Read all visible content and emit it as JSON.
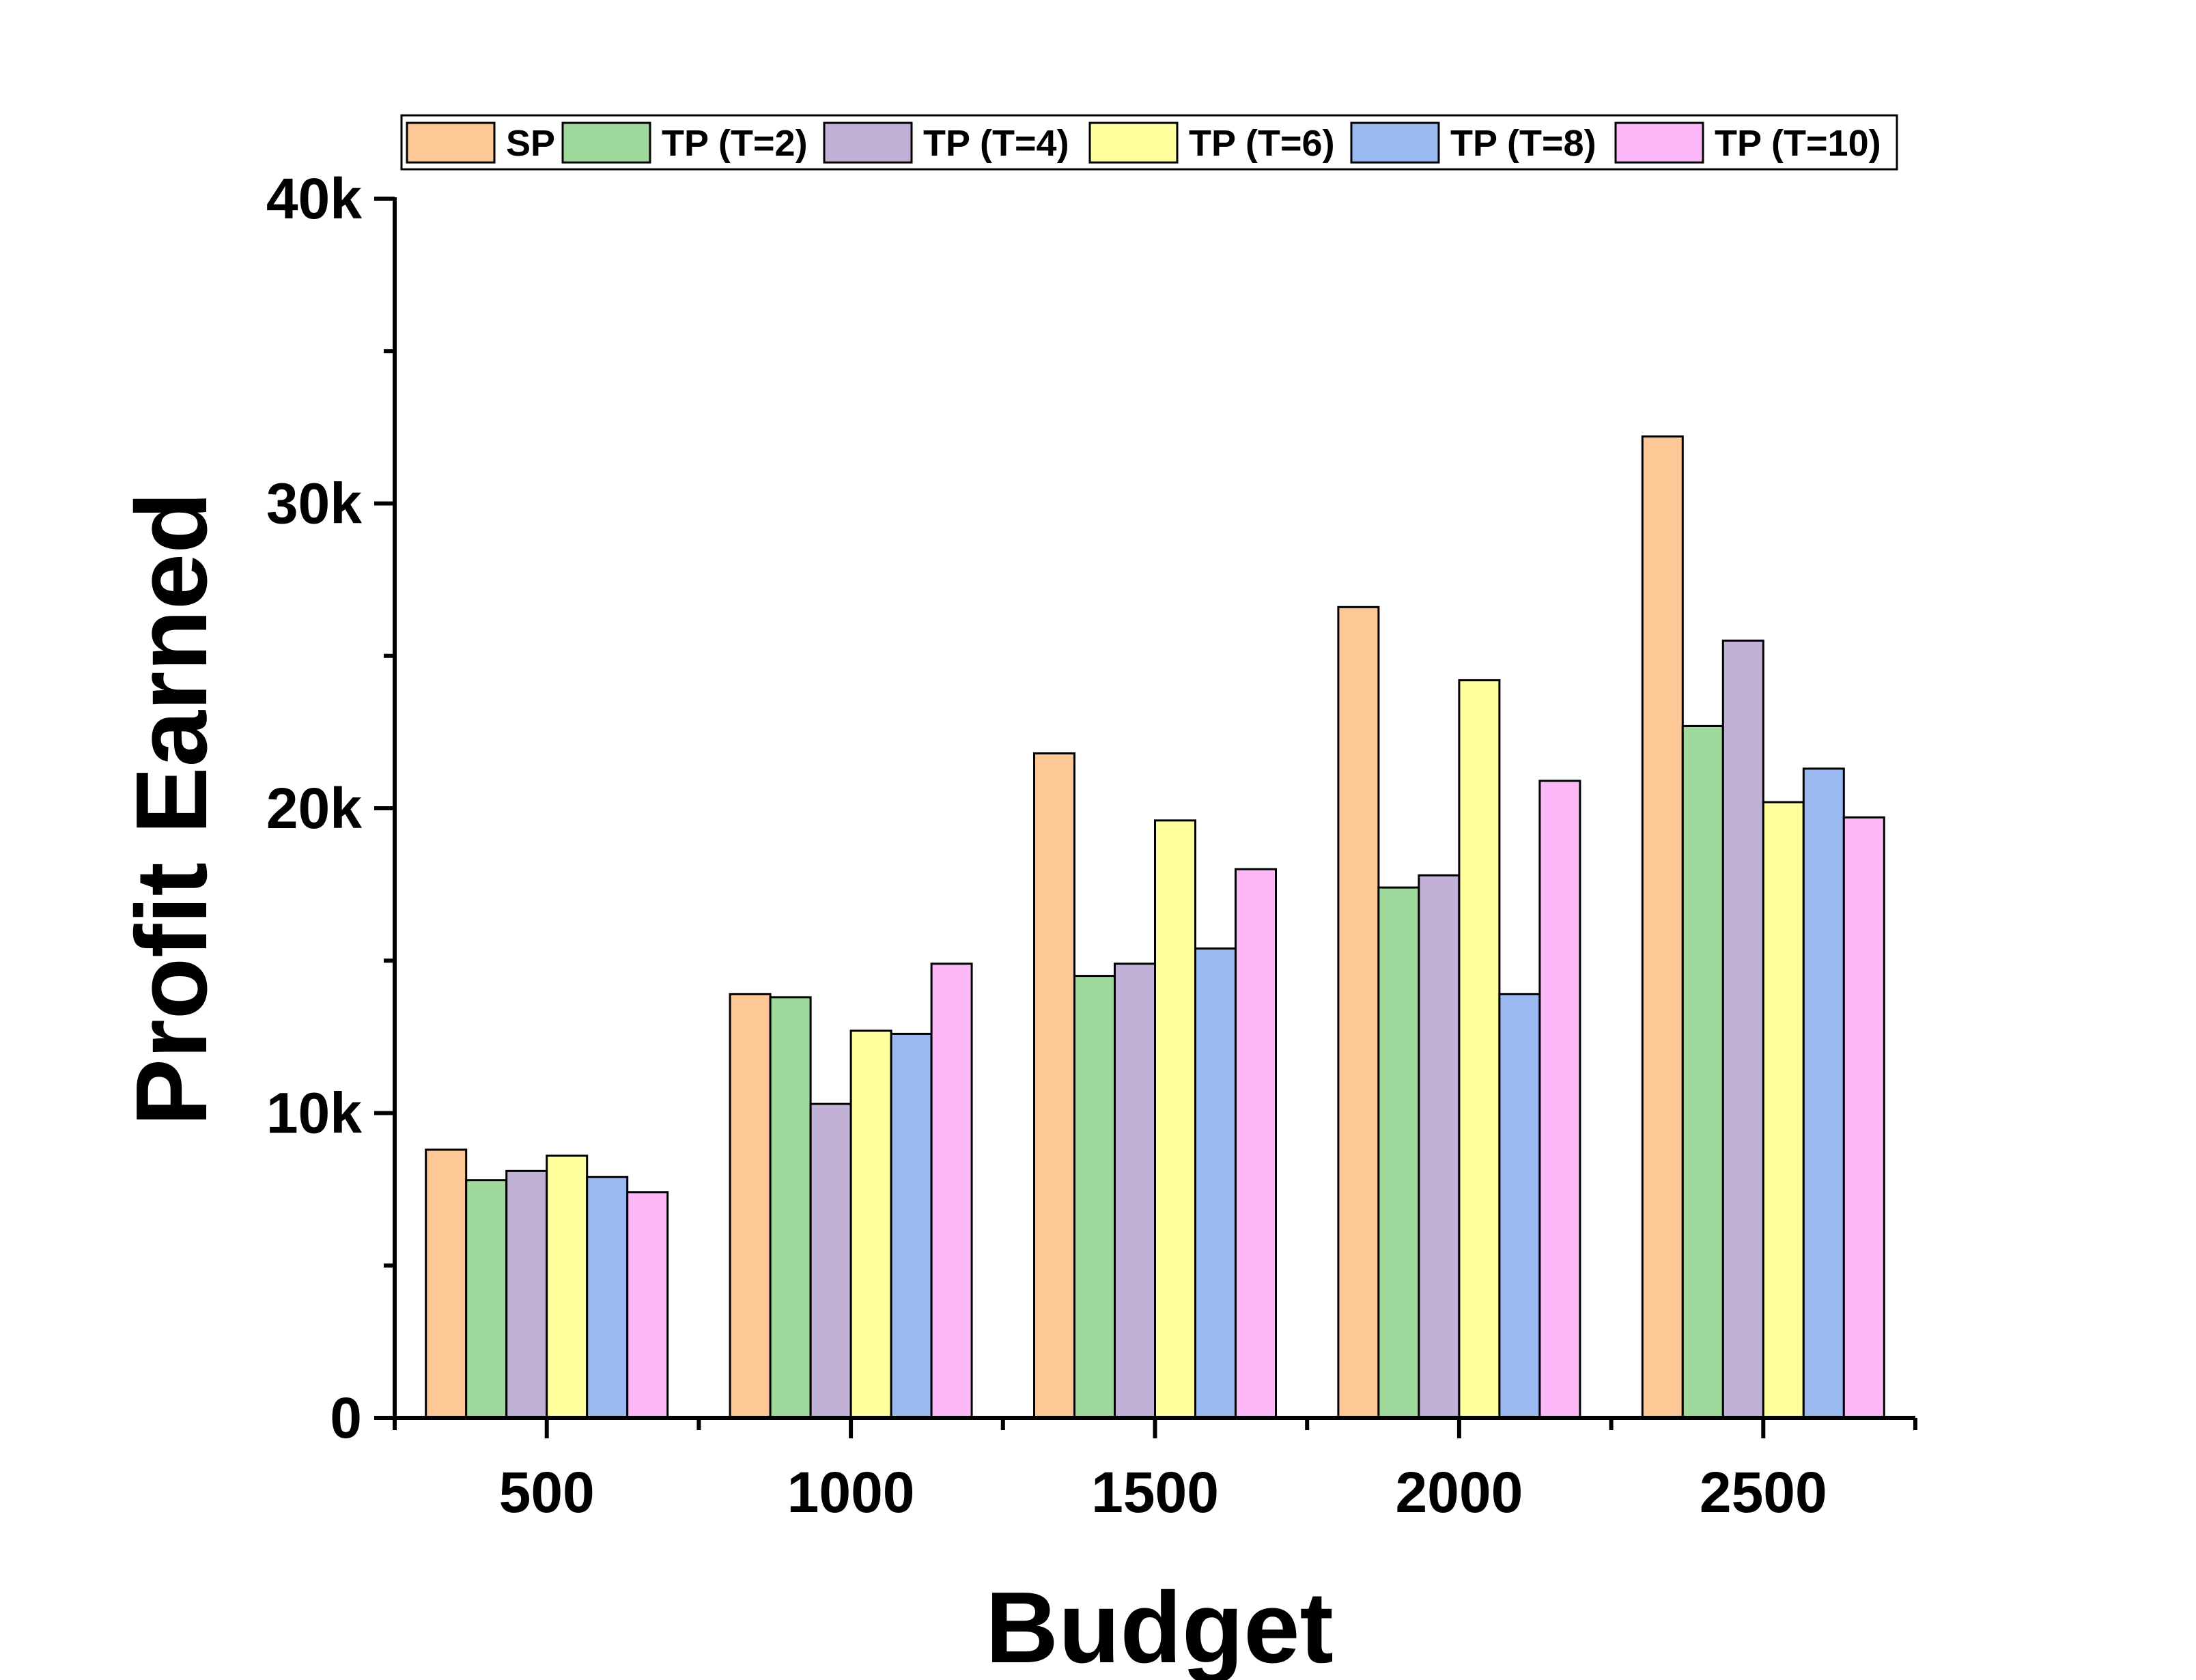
{
  "chart_data": {
    "type": "bar",
    "title": "",
    "xlabel": "Budget",
    "ylabel": "Profit Earned",
    "categories": [
      "500",
      "1000",
      "1500",
      "2000",
      "2500"
    ],
    "ylim": [
      0,
      40000
    ],
    "yticks": [
      {
        "value": 0,
        "label": "0"
      },
      {
        "value": 10000,
        "label": "10k"
      },
      {
        "value": 20000,
        "label": "20k"
      },
      {
        "value": 30000,
        "label": "30k"
      },
      {
        "value": 40000,
        "label": "40k"
      }
    ],
    "legend_position": "top",
    "grid": false,
    "series": [
      {
        "name": "SP",
        "color": "#FDC896",
        "values": [
          8800,
          13900,
          21800,
          26600,
          32200
        ]
      },
      {
        "name": "TP (T=2)",
        "color": "#9FD99B",
        "values": [
          7800,
          13800,
          14500,
          17400,
          22700
        ]
      },
      {
        "name": "TP (T=4)",
        "color": "#C2B1D7",
        "values": [
          8100,
          10300,
          14900,
          17800,
          25500
        ]
      },
      {
        "name": "TP (T=6)",
        "color": "#FFFF9E",
        "values": [
          8600,
          12700,
          19600,
          24200,
          20200
        ]
      },
      {
        "name": "TP (T=8)",
        "color": "#9AB9F1",
        "values": [
          7900,
          12600,
          15400,
          13900,
          21300
        ]
      },
      {
        "name": "TP (T=10)",
        "color": "#FDB8F8",
        "values": [
          7400,
          14900,
          18000,
          20900,
          19700
        ]
      }
    ]
  }
}
